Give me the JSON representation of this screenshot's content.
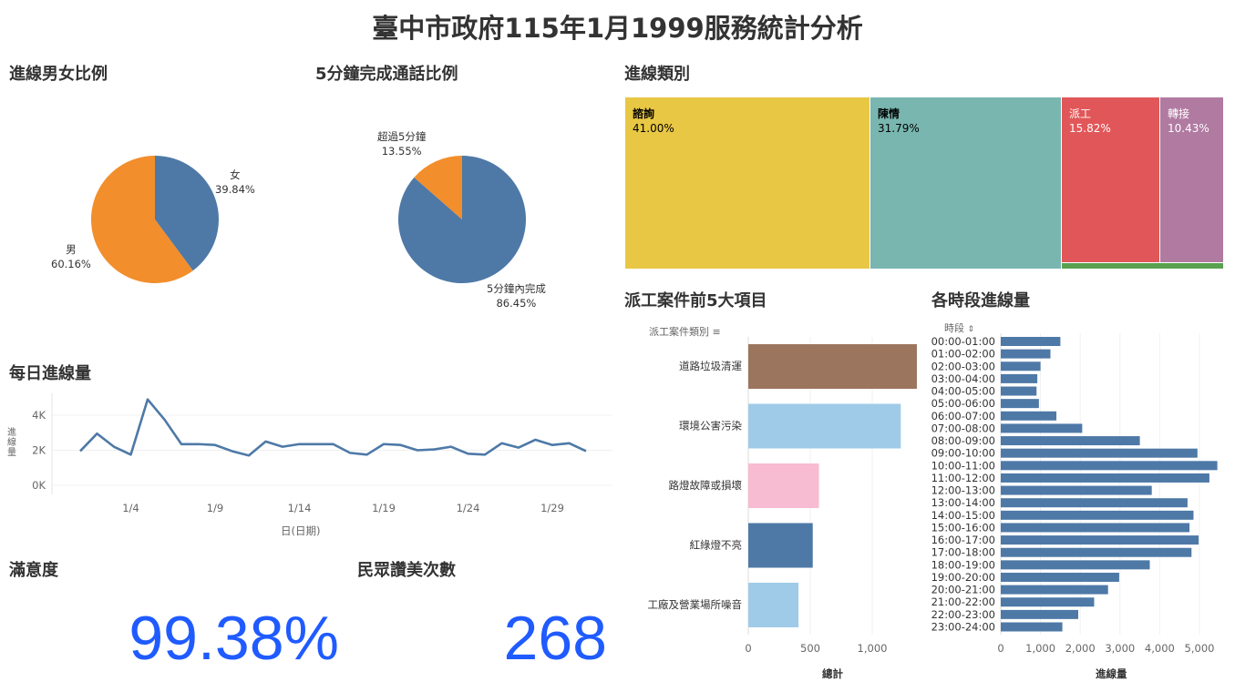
{
  "title": "臺中市政府115年1月1999服務統計分析",
  "sections": {
    "gender": "進線男女比例",
    "duration": "5分鐘完成通話比例",
    "category": "進線類別",
    "daily": "每日進線量",
    "dispatch": "派工案件前5大項目",
    "hourly": "各時段進線量",
    "satisfaction": "滿意度",
    "praise": "民眾讚美次數"
  },
  "kpi": {
    "satisfaction": "99.38%",
    "praise": "268"
  },
  "chart_data": [
    {
      "id": "gender",
      "type": "pie",
      "slices": [
        {
          "label": "女",
          "pct_label": "39.84%",
          "value": 39.84,
          "color": "#4e79a7"
        },
        {
          "label": "男",
          "pct_label": "60.16%",
          "value": 60.16,
          "color": "#f28e2b"
        }
      ]
    },
    {
      "id": "duration",
      "type": "pie",
      "slices": [
        {
          "label": "5分鐘內完成",
          "pct_label": "86.45%",
          "value": 86.45,
          "color": "#4e79a7"
        },
        {
          "label": "超過5分鐘",
          "pct_label": "13.55%",
          "value": 13.55,
          "color": "#f28e2b"
        }
      ]
    },
    {
      "id": "category",
      "type": "treemap",
      "items": [
        {
          "label": "諮詢",
          "pct_label": "41.00%",
          "value": 41.0,
          "color": "#e8c744"
        },
        {
          "label": "陳情",
          "pct_label": "31.79%",
          "value": 31.79,
          "color": "#79b6b0"
        },
        {
          "label": "派工",
          "pct_label": "15.82%",
          "value": 15.82,
          "color": "#e15759"
        },
        {
          "label": "轉接",
          "pct_label": "10.43%",
          "value": 10.43,
          "color": "#b07aa1"
        },
        {
          "label": "",
          "pct_label": "",
          "value": 0.96,
          "color": "#59a14f"
        }
      ]
    },
    {
      "id": "daily",
      "type": "line",
      "ylabel": "進線量",
      "xlabel": "日(日期)",
      "y_ticks": [
        {
          "v": 0,
          "label": "0K"
        },
        {
          "v": 2000,
          "label": "2K"
        },
        {
          "v": 4000,
          "label": "4K"
        }
      ],
      "x_ticks": [
        {
          "day": 4,
          "label": "1/4"
        },
        {
          "day": 9,
          "label": "1/9"
        },
        {
          "day": 14,
          "label": "1/14"
        },
        {
          "day": 19,
          "label": "1/19"
        },
        {
          "day": 24,
          "label": "1/24"
        },
        {
          "day": 29,
          "label": "1/29"
        }
      ],
      "days": [
        1,
        2,
        3,
        4,
        5,
        6,
        7,
        8,
        9,
        10,
        11,
        12,
        13,
        14,
        15,
        16,
        17,
        18,
        19,
        20,
        21,
        22,
        23,
        24,
        25,
        26,
        27,
        28,
        29,
        30,
        31
      ],
      "values": [
        1950,
        2950,
        2200,
        1750,
        4900,
        3750,
        2350,
        2350,
        2300,
        1950,
        1700,
        2500,
        2200,
        2350,
        2350,
        2350,
        1850,
        1750,
        2350,
        2300,
        2000,
        2050,
        2200,
        1800,
        1750,
        2400,
        2150,
        2600,
        2300,
        2400,
        1950
      ],
      "color": "#4e79a7"
    },
    {
      "id": "dispatch",
      "type": "bar",
      "orientation": "horizontal",
      "category_header": "派工案件類別",
      "xlabel": "總計",
      "x_ticks": [
        {
          "v": 0,
          "label": "0"
        },
        {
          "v": 500,
          "label": "500"
        },
        {
          "v": 1000,
          "label": "1,000"
        }
      ],
      "categories": [
        "道路垃圾清運",
        "環境公害污染",
        "路燈故障或損壞",
        "紅綠燈不亮",
        "工廠及營業場所噪音"
      ],
      "values": [
        1360,
        1230,
        570,
        520,
        405
      ],
      "colors": [
        "#9c755f",
        "#a0cbe8",
        "#f7bcd2",
        "#4e79a7",
        "#a0cbe8"
      ]
    },
    {
      "id": "hourly",
      "type": "bar",
      "orientation": "horizontal",
      "category_header": "時段",
      "xlabel": "進線量",
      "x_ticks": [
        {
          "v": 0,
          "label": "0"
        },
        {
          "v": 1000,
          "label": "1,000"
        },
        {
          "v": 2000,
          "label": "2,000"
        },
        {
          "v": 3000,
          "label": "3,000"
        },
        {
          "v": 4000,
          "label": "4,000"
        },
        {
          "v": 5000,
          "label": "5,000"
        }
      ],
      "categories": [
        "00:00-01:00",
        "01:00-02:00",
        "02:00-03:00",
        "03:00-04:00",
        "04:00-05:00",
        "05:00-06:00",
        "06:00-07:00",
        "07:00-08:00",
        "08:00-09:00",
        "09:00-10:00",
        "10:00-11:00",
        "11:00-12:00",
        "12:00-13:00",
        "13:00-14:00",
        "14:00-15:00",
        "15:00-16:00",
        "16:00-17:00",
        "17:00-18:00",
        "18:00-19:00",
        "19:00-20:00",
        "20:00-21:00",
        "21:00-22:00",
        "22:00-23:00",
        "23:00-24:00"
      ],
      "values": [
        1500,
        1250,
        1000,
        920,
        900,
        960,
        1400,
        2050,
        3500,
        4950,
        5450,
        5250,
        3800,
        4700,
        4850,
        4750,
        4980,
        4800,
        3750,
        2980,
        2700,
        2350,
        1950,
        1550
      ],
      "color": "#4e79a7"
    }
  ]
}
